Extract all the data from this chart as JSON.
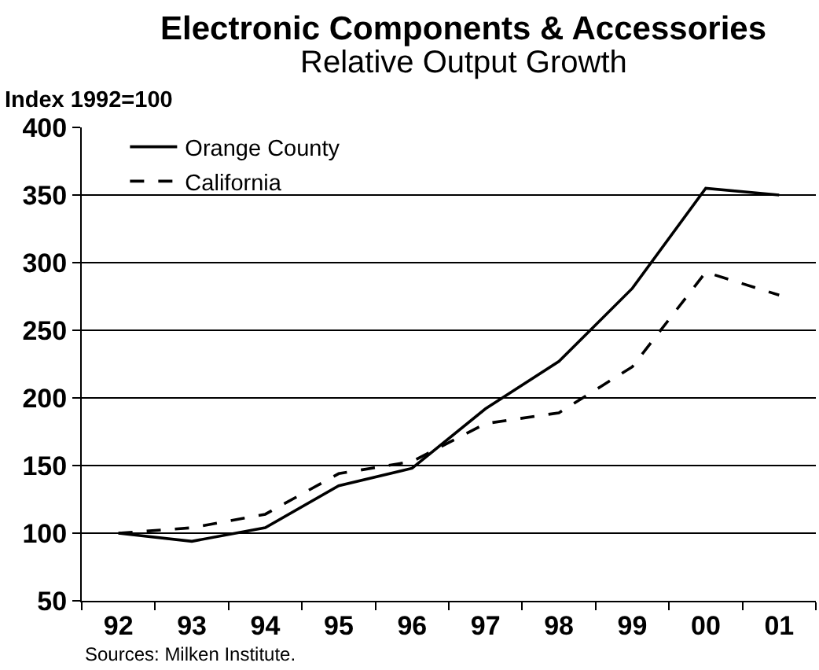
{
  "chart_data": {
    "type": "line",
    "title": "Electronic Components & Accessories",
    "subtitle": "Relative Output Growth",
    "ylabel": "Index 1992=100",
    "categories": [
      "92",
      "93",
      "94",
      "95",
      "96",
      "97",
      "98",
      "99",
      "00",
      "01"
    ],
    "series": [
      {
        "name": "Orange County",
        "color": "#000000",
        "line_style": "solid",
        "values": [
          100,
          94,
          104,
          135,
          148,
          192,
          227,
          281,
          355,
          350
        ]
      },
      {
        "name": "California",
        "color": "#000000",
        "line_style": "dashed",
        "values": [
          100,
          104,
          114,
          144,
          153,
          181,
          189,
          223,
          293,
          276
        ]
      }
    ],
    "ylim": [
      50,
      400
    ],
    "yticks": [
      50,
      100,
      150,
      200,
      250,
      300,
      350,
      400
    ],
    "grid": "y",
    "legend": "top left",
    "annotations": [
      "Sources: Milken Institute."
    ]
  }
}
